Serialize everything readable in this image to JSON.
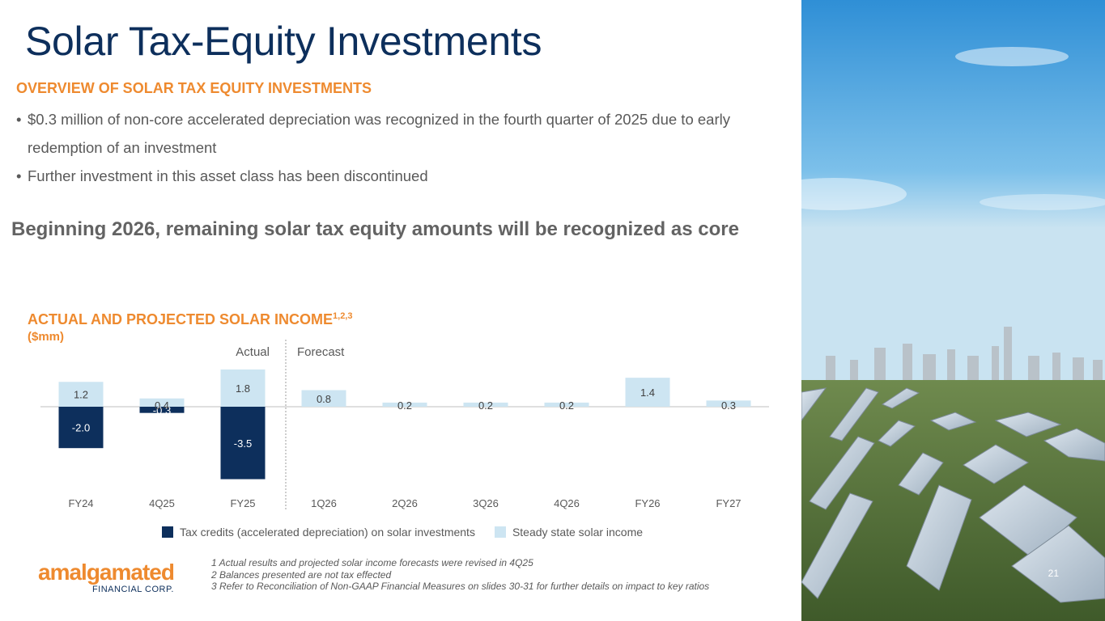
{
  "title": "Solar Tax-Equity Investments",
  "overview": {
    "heading": "OVERVIEW OF SOLAR TAX EQUITY INVESTMENTS",
    "bullets": [
      "$0.3 million of non-core accelerated depreciation was recognized in the fourth quarter of 2025 due to early redemption of an investment",
      "Further investment in this asset class has been discontinued"
    ]
  },
  "callout": "Beginning 2026, remaining solar tax equity amounts will be recognized as core",
  "chart_heading": {
    "text": "ACTUAL AND PROJECTED SOLAR INCOME",
    "superscript": "1,2,3",
    "unit": "($mm)"
  },
  "chart_data": {
    "type": "bar",
    "stacked": true,
    "categories": [
      "FY24",
      "4Q25",
      "FY25",
      "1Q26",
      "2Q26",
      "3Q26",
      "4Q26",
      "FY26",
      "FY27"
    ],
    "series": [
      {
        "name": "Tax credits (accelerated depreciation) on solar investments",
        "color": "#0d2f5c",
        "values": [
          -2.0,
          -0.3,
          -3.5,
          null,
          null,
          null,
          null,
          null,
          null
        ]
      },
      {
        "name": "Steady state solar income",
        "color": "#cde5f2",
        "values": [
          1.2,
          0.4,
          1.8,
          0.8,
          0.2,
          0.2,
          0.2,
          1.4,
          0.3
        ]
      }
    ],
    "data_labels": {
      "Tax credits (accelerated depreciation) on solar investments": [
        "-2.0",
        "-0.3",
        "-3.5",
        "",
        "",
        "",
        "",
        "",
        ""
      ],
      "Steady state solar income": [
        "1.2",
        "0.4",
        "1.8",
        "0.8",
        "0.2",
        "0.2",
        "0.2",
        "1.4",
        "0.3"
      ]
    },
    "divider": {
      "after_category": "FY25",
      "left_label": "Actual",
      "right_label": "Forecast"
    },
    "legend_position": "bottom",
    "grid": false
  },
  "footnotes": [
    "1 Actual results and projected solar income forecasts were revised in 4Q25",
    "2 Balances presented are not tax effected",
    "3 Refer to Reconciliation of Non-GAAP Financial Measures on slides 30-31 for further details on impact to key ratios"
  ],
  "logo": {
    "word": "amalgamated",
    "sub": "FINANCIAL CORP."
  },
  "page_number": "21"
}
